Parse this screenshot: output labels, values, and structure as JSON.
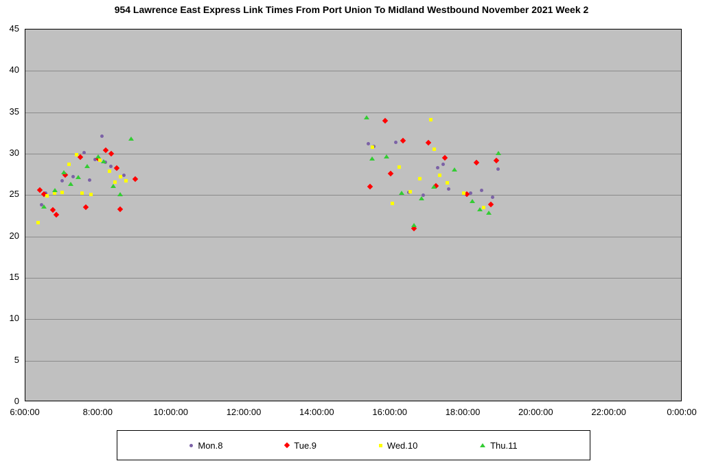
{
  "chart_data": {
    "type": "scatter",
    "title": "954 Lawrence East Express Link Times From Port Union To Midland Westbound November 2021  Week 2",
    "xlabel": "",
    "ylabel": "",
    "x_axis": {
      "unit": "time-of-day-hours",
      "range_hours": [
        6,
        24
      ],
      "tick_step_hours": 2,
      "tick_labels": [
        "6:00:00",
        "8:00:00",
        "10:00:00",
        "12:00:00",
        "14:00:00",
        "16:00:00",
        "18:00:00",
        "20:00:00",
        "22:00:00",
        "0:00:00"
      ]
    },
    "y_axis": {
      "range": [
        0,
        45
      ],
      "tick_step": 5,
      "tick_labels": [
        "0",
        "5",
        "10",
        "15",
        "20",
        "25",
        "30",
        "35",
        "40",
        "45"
      ]
    },
    "grid": "horizontal",
    "legend_position": "bottom",
    "plot_background": "#c0c0c0",
    "series": [
      {
        "name": "Mon.8",
        "marker": "circle",
        "color": "#7b61a6",
        "points": [
          [
            6.45,
            23.8
          ],
          [
            6.55,
            25.2
          ],
          [
            7.0,
            26.7
          ],
          [
            7.3,
            27.2
          ],
          [
            7.6,
            30.1
          ],
          [
            7.75,
            26.8
          ],
          [
            7.9,
            29.3
          ],
          [
            8.1,
            32.1
          ],
          [
            8.2,
            29.0
          ],
          [
            8.35,
            28.5
          ],
          [
            8.5,
            28.2
          ],
          [
            8.7,
            27.4
          ],
          [
            15.4,
            31.2
          ],
          [
            15.55,
            30.9
          ],
          [
            16.15,
            31.4
          ],
          [
            16.5,
            25.3
          ],
          [
            16.9,
            25.0
          ],
          [
            17.3,
            28.3
          ],
          [
            17.45,
            28.7
          ],
          [
            17.6,
            25.7
          ],
          [
            18.2,
            25.2
          ],
          [
            18.5,
            25.6
          ],
          [
            18.8,
            24.7
          ],
          [
            18.95,
            28.1
          ]
        ]
      },
      {
        "name": "Tue.9",
        "marker": "diamond",
        "color": "#ff0000",
        "points": [
          [
            6.4,
            25.6
          ],
          [
            6.5,
            25.1
          ],
          [
            6.75,
            23.2
          ],
          [
            6.85,
            22.6
          ],
          [
            7.1,
            27.4
          ],
          [
            7.5,
            29.6
          ],
          [
            7.65,
            23.5
          ],
          [
            8.0,
            29.4
          ],
          [
            8.2,
            30.4
          ],
          [
            8.35,
            30.0
          ],
          [
            8.5,
            28.3
          ],
          [
            8.6,
            23.3
          ],
          [
            9.0,
            26.9
          ],
          [
            15.45,
            26.0
          ],
          [
            15.85,
            34.0
          ],
          [
            16.0,
            27.6
          ],
          [
            16.35,
            31.6
          ],
          [
            16.65,
            21.0
          ],
          [
            17.05,
            31.3
          ],
          [
            17.25,
            26.1
          ],
          [
            17.5,
            29.5
          ],
          [
            18.1,
            25.1
          ],
          [
            18.35,
            28.9
          ],
          [
            18.75,
            23.9
          ],
          [
            18.9,
            29.2
          ]
        ]
      },
      {
        "name": "Wed.10",
        "marker": "square",
        "color": "#ffff00",
        "points": [
          [
            6.35,
            21.7
          ],
          [
            6.6,
            24.9
          ],
          [
            6.8,
            25.2
          ],
          [
            7.0,
            25.3
          ],
          [
            7.2,
            28.7
          ],
          [
            7.4,
            29.9
          ],
          [
            7.55,
            25.2
          ],
          [
            7.8,
            25.1
          ],
          [
            8.05,
            29.2
          ],
          [
            8.3,
            27.9
          ],
          [
            8.45,
            26.6
          ],
          [
            8.6,
            27.2
          ],
          [
            8.75,
            26.7
          ],
          [
            15.5,
            30.8
          ],
          [
            16.05,
            24.0
          ],
          [
            16.25,
            28.4
          ],
          [
            16.55,
            25.4
          ],
          [
            16.8,
            27.0
          ],
          [
            17.1,
            34.1
          ],
          [
            17.2,
            30.5
          ],
          [
            17.35,
            27.4
          ],
          [
            17.55,
            26.5
          ],
          [
            18.0,
            25.2
          ],
          [
            18.55,
            23.5
          ]
        ]
      },
      {
        "name": "Thu.11",
        "marker": "triangle",
        "color": "#33cc33",
        "points": [
          [
            6.5,
            23.5
          ],
          [
            6.8,
            25.5
          ],
          [
            7.05,
            27.7
          ],
          [
            7.25,
            26.3
          ],
          [
            7.45,
            27.1
          ],
          [
            7.7,
            28.4
          ],
          [
            8.0,
            29.6
          ],
          [
            8.15,
            29.0
          ],
          [
            8.4,
            26.0
          ],
          [
            8.6,
            25.0
          ],
          [
            8.9,
            31.7
          ],
          [
            15.35,
            34.3
          ],
          [
            15.5,
            29.3
          ],
          [
            15.9,
            29.6
          ],
          [
            16.3,
            25.2
          ],
          [
            16.65,
            21.3
          ],
          [
            16.85,
            24.5
          ],
          [
            17.2,
            25.9
          ],
          [
            17.75,
            28.0
          ],
          [
            18.25,
            24.2
          ],
          [
            18.45,
            23.2
          ],
          [
            18.7,
            22.8
          ],
          [
            18.95,
            30.0
          ]
        ]
      }
    ]
  }
}
